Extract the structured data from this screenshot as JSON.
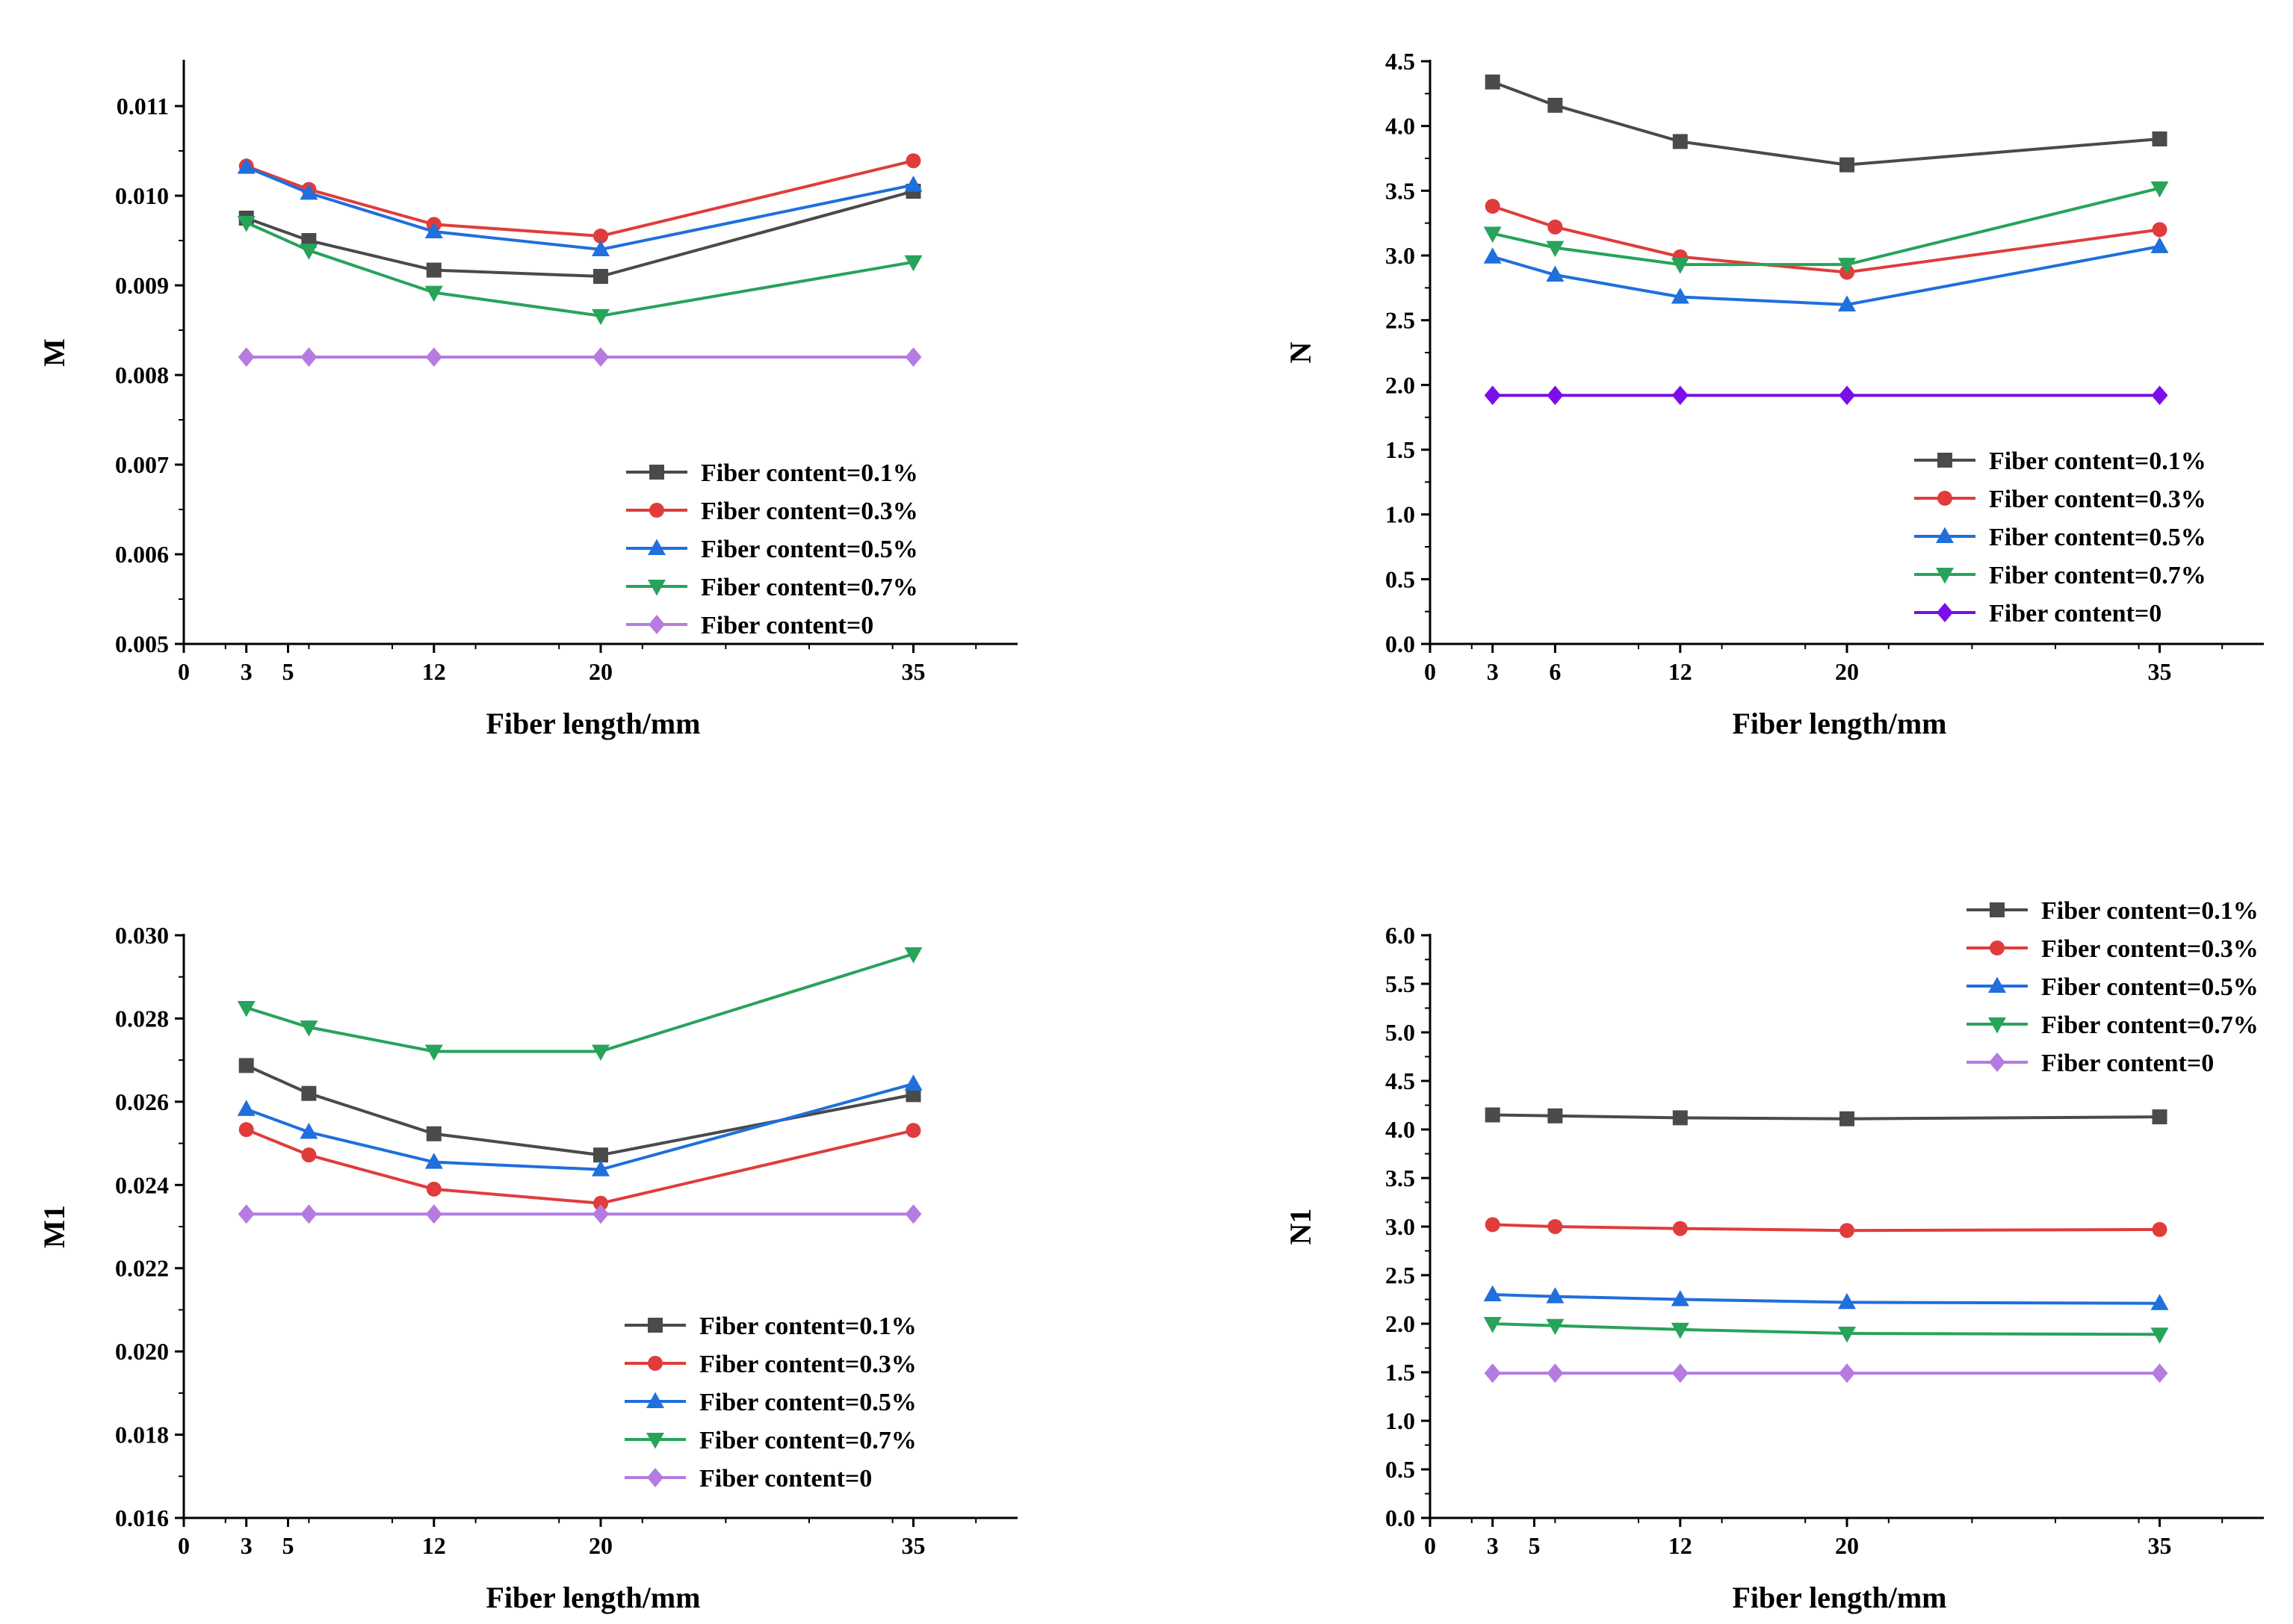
{
  "colors": {
    "fiber_0_1": "#4a4a4a",
    "fiber_0_3": "#e03c3c",
    "fiber_0_5": "#1f6fdc",
    "fiber_0_7": "#27a35a",
    "fiber_0_panelA": "#b57be0",
    "fiber_0_panelB": "#7b0ee8"
  },
  "chart_data": [
    {
      "type": "line",
      "xlabel": "Fiber length/mm",
      "ylabel": "M",
      "xlim": [
        0,
        40
      ],
      "ylim": [
        0.005,
        0.0115
      ],
      "xticks": [
        "0",
        "3",
        "5",
        "12",
        "20",
        "35"
      ],
      "yticks": [
        "0.005",
        "0.006",
        "0.007",
        "0.008",
        "0.009",
        "0.010",
        "0.011"
      ],
      "x": [
        3,
        6,
        12,
        20,
        35
      ],
      "legend_position": "bottom-right",
      "series": [
        {
          "name": "Fiber content=0.1%",
          "marker": "square",
          "color": "#4a4a4a",
          "values": [
            0.00975,
            0.0095,
            0.00917,
            0.0091,
            0.01005
          ]
        },
        {
          "name": "Fiber content=0.3%",
          "marker": "circle",
          "color": "#e03c3c",
          "values": [
            0.01033,
            0.01007,
            0.00968,
            0.00955,
            0.01039
          ]
        },
        {
          "name": "Fiber content=0.5%",
          "marker": "triangle-up",
          "color": "#1f6fdc",
          "values": [
            0.01032,
            0.01003,
            0.0096,
            0.0094,
            0.01012
          ]
        },
        {
          "name": "Fiber content=0.7%",
          "marker": "triangle-down",
          "color": "#27a35a",
          "values": [
            0.0097,
            0.00939,
            0.00892,
            0.00866,
            0.00926
          ]
        },
        {
          "name": "Fiber content=0",
          "marker": "diamond",
          "color": "#b57be0",
          "values": [
            0.0082,
            0.0082,
            0.0082,
            0.0082,
            0.0082
          ]
        }
      ]
    },
    {
      "type": "line",
      "xlabel": "Fiber length/mm",
      "ylabel": "N",
      "xlim": [
        0,
        40
      ],
      "ylim": [
        0,
        4.5
      ],
      "xticks": [
        "0",
        "3",
        "6",
        "12",
        "20",
        "35"
      ],
      "yticks": [
        "0.0",
        "0.5",
        "1.0",
        "1.5",
        "2.0",
        "2.5",
        "3.0",
        "3.5",
        "4.0",
        "4.5"
      ],
      "x": [
        3,
        6,
        12,
        20,
        35
      ],
      "legend_position": "middle-right",
      "series": [
        {
          "name": "Fiber content=0.1%",
          "marker": "square",
          "color": "#4a4a4a",
          "values": [
            4.34,
            4.16,
            3.88,
            3.7,
            3.9
          ]
        },
        {
          "name": "Fiber content=0.3%",
          "marker": "circle",
          "color": "#e03c3c",
          "values": [
            3.38,
            3.22,
            2.99,
            2.87,
            3.2
          ]
        },
        {
          "name": "Fiber content=0.5%",
          "marker": "triangle-up",
          "color": "#1f6fdc",
          "values": [
            2.99,
            2.85,
            2.68,
            2.62,
            3.07
          ]
        },
        {
          "name": "Fiber content=0.7%",
          "marker": "triangle-down",
          "color": "#27a35a",
          "values": [
            3.17,
            3.06,
            2.93,
            2.93,
            3.52
          ]
        },
        {
          "name": "Fiber content=0",
          "marker": "diamond",
          "color": "#7b0ee8",
          "values": [
            1.92,
            1.92,
            1.92,
            1.92,
            1.92
          ]
        }
      ]
    },
    {
      "type": "line",
      "xlabel": "Fiber length/mm",
      "ylabel": "M1",
      "xlim": [
        0,
        40
      ],
      "ylim": [
        0.016,
        0.03
      ],
      "xticks": [
        "0",
        "3",
        "5",
        "12",
        "20",
        "35"
      ],
      "yticks": [
        "0.016",
        "0.018",
        "0.020",
        "0.022",
        "0.024",
        "0.026",
        "0.028",
        "0.030"
      ],
      "x": [
        3,
        6,
        12,
        20,
        35
      ],
      "legend_position": "bottom-right",
      "series": [
        {
          "name": "Fiber content=0.1%",
          "marker": "square",
          "color": "#4a4a4a",
          "values": [
            0.02687,
            0.0262,
            0.02523,
            0.02472,
            0.02617
          ]
        },
        {
          "name": "Fiber content=0.3%",
          "marker": "circle",
          "color": "#e03c3c",
          "values": [
            0.02533,
            0.02472,
            0.0239,
            0.02356,
            0.02531
          ]
        },
        {
          "name": "Fiber content=0.5%",
          "marker": "triangle-up",
          "color": "#1f6fdc",
          "values": [
            0.02582,
            0.02527,
            0.02455,
            0.02437,
            0.02643
          ]
        },
        {
          "name": "Fiber content=0.7%",
          "marker": "triangle-down",
          "color": "#27a35a",
          "values": [
            0.02826,
            0.02779,
            0.02721,
            0.02721,
            0.02955
          ]
        },
        {
          "name": "Fiber content=0",
          "marker": "diamond",
          "color": "#b57be0",
          "values": [
            0.0233,
            0.0233,
            0.0233,
            0.0233,
            0.0233
          ]
        }
      ]
    },
    {
      "type": "line",
      "xlabel": "Fiber length/mm",
      "ylabel": "N1",
      "xlim": [
        0,
        40
      ],
      "ylim": [
        0,
        6
      ],
      "xticks": [
        "0",
        "3",
        "5",
        "12",
        "20",
        "35"
      ],
      "yticks": [
        "0.0",
        "0.5",
        "1.0",
        "1.5",
        "2.0",
        "2.5",
        "3.0",
        "3.5",
        "4.0",
        "4.5",
        "5.0",
        "5.5",
        "6.0"
      ],
      "x": [
        3,
        6,
        12,
        20,
        35
      ],
      "legend_position": "top-right",
      "series": [
        {
          "name": "Fiber content=0.1%",
          "marker": "square",
          "color": "#4a4a4a",
          "values": [
            4.15,
            4.14,
            4.12,
            4.11,
            4.13
          ]
        },
        {
          "name": "Fiber content=0.3%",
          "marker": "circle",
          "color": "#e03c3c",
          "values": [
            3.02,
            3.0,
            2.98,
            2.96,
            2.97
          ]
        },
        {
          "name": "Fiber content=0.5%",
          "marker": "triangle-up",
          "color": "#1f6fdc",
          "values": [
            2.3,
            2.28,
            2.25,
            2.22,
            2.21
          ]
        },
        {
          "name": "Fiber content=0.7%",
          "marker": "triangle-down",
          "color": "#27a35a",
          "values": [
            2.0,
            1.98,
            1.94,
            1.9,
            1.89
          ]
        },
        {
          "name": "Fiber content=0",
          "marker": "diamond",
          "color": "#b57be0",
          "values": [
            1.49,
            1.49,
            1.49,
            1.49,
            1.49
          ]
        }
      ]
    }
  ]
}
